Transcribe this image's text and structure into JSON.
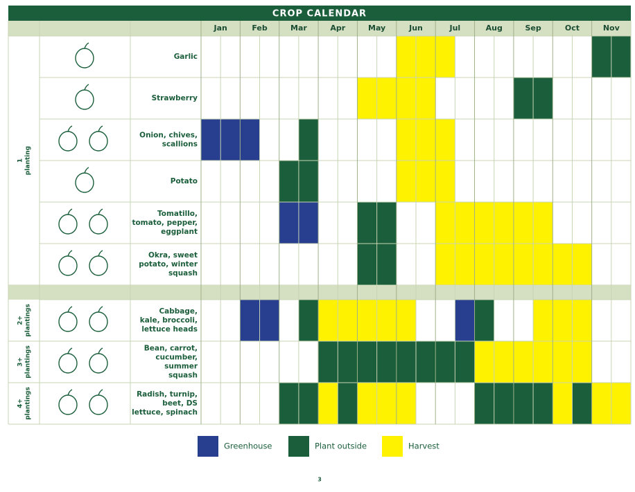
{
  "title": "CROP CALENDAR",
  "months": [
    "Jan",
    "Feb",
    "Mar",
    "Apr",
    "May",
    "Jun",
    "Jul",
    "Aug",
    "Sep",
    "Oct",
    "Nov"
  ],
  "legend": [
    {
      "name": "Greenhouse",
      "color": "#283f8f"
    },
    {
      "name": "Plant outside",
      "color": "#1b5e3b"
    },
    {
      "name": "Harvest",
      "color": "#fff200"
    }
  ],
  "groups": [
    {
      "label": [
        "1",
        "planting"
      ],
      "crops": [
        {
          "name": [
            "Garlic"
          ],
          "cells": [
            null,
            null,
            null,
            null,
            null,
            null,
            null,
            null,
            null,
            null,
            "Harvest",
            "Harvest",
            "Harvest",
            null,
            null,
            null,
            null,
            null,
            null,
            null,
            "Plant outside",
            "Plant outside"
          ]
        },
        {
          "name": [
            "Strawberry"
          ],
          "cells": [
            null,
            null,
            null,
            null,
            null,
            null,
            null,
            null,
            "Harvest",
            "Harvest",
            "Harvest",
            "Harvest",
            null,
            null,
            null,
            null,
            "Plant outside",
            "Plant outside",
            null,
            null,
            null,
            null
          ]
        },
        {
          "name": [
            "Onion, chives,",
            "scallions"
          ],
          "cells": [
            "Greenhouse",
            "Greenhouse",
            "Greenhouse",
            null,
            null,
            "Plant outside",
            null,
            null,
            null,
            null,
            "Harvest",
            "Harvest",
            "Harvest",
            null,
            null,
            null,
            null,
            null,
            null,
            null,
            null,
            null
          ]
        },
        {
          "name": [
            "Potato"
          ],
          "cells": [
            null,
            null,
            null,
            null,
            "Plant outside",
            "Plant outside",
            null,
            null,
            null,
            null,
            "Harvest",
            "Harvest",
            "Harvest",
            null,
            null,
            null,
            null,
            null,
            null,
            null,
            null,
            null
          ]
        },
        {
          "name": [
            "Tomatillo,",
            "tomato, pepper,",
            "eggplant"
          ],
          "cells": [
            null,
            null,
            null,
            null,
            "Greenhouse",
            "Greenhouse",
            null,
            null,
            "Plant outside",
            "Plant outside",
            null,
            null,
            "Harvest",
            "Harvest",
            "Harvest",
            "Harvest",
            "Harvest",
            "Harvest",
            null,
            null,
            null,
            null
          ]
        },
        {
          "name": [
            "Okra, sweet",
            "potato, winter",
            "squash"
          ],
          "cells": [
            null,
            null,
            null,
            null,
            null,
            null,
            null,
            null,
            "Plant outside",
            "Plant outside",
            null,
            null,
            "Harvest",
            "Harvest",
            "Harvest",
            "Harvest",
            "Harvest",
            "Harvest",
            "Harvest",
            "Harvest",
            null,
            null
          ]
        }
      ]
    },
    {
      "label": [
        "2+",
        "plantings"
      ],
      "crops": [
        {
          "name": [
            "Cabbage,",
            "kale, broccoli,",
            "lettuce heads"
          ],
          "cells": [
            null,
            null,
            "Greenhouse",
            "Greenhouse",
            null,
            "Plant outside",
            "Harvest",
            "Harvest",
            "Harvest",
            "Harvest",
            "Harvest",
            null,
            null,
            "Greenhouse",
            "Plant outside",
            null,
            null,
            "Harvest",
            "Harvest",
            "Harvest",
            null,
            null
          ]
        }
      ]
    },
    {
      "label": [
        "3+",
        "plantings"
      ],
      "crops": [
        {
          "name": [
            "Bean, carrot,",
            "cucumber,",
            "summer",
            "squash"
          ],
          "cells": [
            null,
            null,
            null,
            null,
            null,
            null,
            "Plant outside",
            "Plant outside",
            "Plant outside",
            "Plant outside",
            "Plant outside",
            "Plant outside",
            "Plant outside",
            "Plant outside",
            "Harvest",
            "Harvest",
            "Harvest",
            "Harvest",
            "Harvest",
            "Harvest",
            null,
            null
          ]
        }
      ]
    },
    {
      "label": [
        "4+",
        "plantings"
      ],
      "crops": [
        {
          "name": [
            "Radish, turnip,",
            "beet, DS",
            "lettuce, spinach"
          ],
          "cells": [
            null,
            null,
            null,
            null,
            "Plant outside",
            "Plant outside",
            "Harvest",
            "Plant outside",
            "Harvest",
            "Harvest",
            "Harvest",
            null,
            null,
            null,
            "Plant outside",
            "Plant outside",
            "Plant outside",
            "Plant outside",
            "Harvest",
            "Plant outside",
            "Harvest",
            "Harvest"
          ]
        }
      ]
    }
  ],
  "page_number": "3"
}
